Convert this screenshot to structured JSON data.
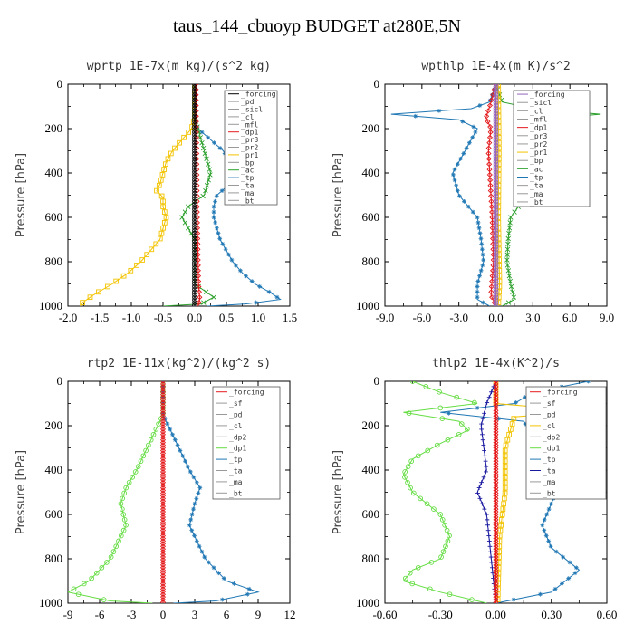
{
  "title": "taus_144_cbuoyp  BUDGET at280E,5N",
  "chart_data": [
    {
      "type": "line",
      "title": "wprtp  1E-7x(m kg)/(s^2 kg)",
      "ylabel": "Pressure [hPa]",
      "xlim": [
        -2.0,
        1.5
      ],
      "ylim": [
        1000,
        0
      ],
      "xticks": [
        -2.0,
        -1.5,
        -1.0,
        -0.5,
        0.0,
        0.5,
        1.0,
        1.5
      ],
      "xtick_labels": [
        "-2.0",
        "-1.5",
        "-1.0",
        "-0.5",
        "0.0",
        "0.5",
        "1.0",
        "1.5"
      ],
      "yticks": [
        0,
        200,
        400,
        600,
        800,
        1000
      ],
      "legend": [
        "_forcing",
        "_pd",
        "_sicl",
        "_cl",
        "_mfl",
        "_dp1",
        "_pr3",
        "_pr2",
        "_pr1",
        "_bp",
        "_ac",
        "_tp",
        "_ta",
        "_ma",
        "_bt"
      ],
      "series": [
        {
          "name": "_pr1",
          "color": "#f2c300",
          "marker": "square",
          "points": [
            [
              0,
              0
            ],
            [
              0,
              150
            ],
            [
              -0.05,
              200
            ],
            [
              -0.2,
              250
            ],
            [
              -0.35,
              300
            ],
            [
              -0.45,
              350
            ],
            [
              -0.5,
              400
            ],
            [
              -0.55,
              450
            ],
            [
              -0.6,
              480
            ],
            [
              -0.5,
              510
            ],
            [
              -0.5,
              550
            ],
            [
              -0.45,
              600
            ],
            [
              -0.5,
              650
            ],
            [
              -0.55,
              700
            ],
            [
              -0.7,
              750
            ],
            [
              -0.85,
              800
            ],
            [
              -1.05,
              850
            ],
            [
              -1.3,
              900
            ],
            [
              -1.6,
              950
            ],
            [
              -1.8,
              990
            ],
            [
              -1.8,
              1000
            ]
          ]
        },
        {
          "name": "_tp",
          "color": "#1f77b4",
          "marker": "star",
          "points": [
            [
              0,
              0
            ],
            [
              0,
              150
            ],
            [
              0.05,
              200
            ],
            [
              0.25,
              250
            ],
            [
              0.45,
              300
            ],
            [
              0.55,
              350
            ],
            [
              0.6,
              400
            ],
            [
              0.55,
              450
            ],
            [
              0.35,
              500
            ],
            [
              0.3,
              550
            ],
            [
              0.3,
              600
            ],
            [
              0.35,
              650
            ],
            [
              0.4,
              700
            ],
            [
              0.5,
              750
            ],
            [
              0.6,
              800
            ],
            [
              0.75,
              850
            ],
            [
              0.95,
              900
            ],
            [
              1.2,
              940
            ],
            [
              1.35,
              970
            ],
            [
              0.8,
              990
            ],
            [
              0.2,
              1000
            ]
          ]
        },
        {
          "name": "_ac",
          "color": "#2ca02c",
          "marker": "cross",
          "points": [
            [
              0,
              0
            ],
            [
              0,
              150
            ],
            [
              0.05,
              200
            ],
            [
              0.15,
              300
            ],
            [
              0.25,
              400
            ],
            [
              0.15,
              500
            ],
            [
              -0.1,
              550
            ],
            [
              -0.2,
              600
            ],
            [
              -0.1,
              650
            ],
            [
              0,
              700
            ],
            [
              0,
              900
            ],
            [
              0.3,
              960
            ],
            [
              0.1,
              990
            ],
            [
              -0.5,
              1000
            ]
          ]
        },
        {
          "name": "_dp1",
          "color": "#e41a1c",
          "marker": "diamond",
          "points": [
            [
              0.02,
              0
            ],
            [
              0.03,
              300
            ],
            [
              0.04,
              600
            ],
            [
              0.06,
              900
            ],
            [
              0.08,
              970
            ],
            [
              0.05,
              1000
            ]
          ]
        },
        {
          "name": "_forcing",
          "color": "#000000",
          "marker": "circle",
          "points": [
            [
              0,
              0
            ],
            [
              0,
              1000
            ]
          ]
        }
      ]
    },
    {
      "type": "line",
      "title": "wpthlp  1E-4x(m K)/s^2",
      "ylabel": "Pressure [hPa]",
      "xlim": [
        -9.0,
        9.0
      ],
      "ylim": [
        1000,
        0
      ],
      "xticks": [
        -9.0,
        -6.0,
        -3.0,
        0.0,
        3.0,
        6.0,
        9.0
      ],
      "xtick_labels": [
        "-9.0",
        "-6.0",
        "-3.0",
        "0.0",
        "3.0",
        "6.0",
        "9.0"
      ],
      "yticks": [
        0,
        200,
        400,
        600,
        800,
        1000
      ],
      "legend": [
        "_forcing",
        "_sicl",
        "_cl",
        "_mfl",
        "_dp1",
        "_pr3",
        "_pr2",
        "_pr1",
        "_bp",
        "_ac",
        "_tp",
        "_ta",
        "_ma",
        "_bt"
      ],
      "series": [
        {
          "name": "_tp",
          "color": "#1f77b4",
          "marker": "star",
          "points": [
            [
              0,
              0
            ],
            [
              -0.5,
              80
            ],
            [
              -2,
              110
            ],
            [
              -8.5,
              135
            ],
            [
              -3,
              160
            ],
            [
              -1.5,
              200
            ],
            [
              -2.5,
              300
            ],
            [
              -3.5,
              400
            ],
            [
              -3,
              500
            ],
            [
              -1.5,
              600
            ],
            [
              -1.2,
              700
            ],
            [
              -1,
              800
            ],
            [
              -1.5,
              900
            ],
            [
              -1.5,
              970
            ],
            [
              -0.5,
              1000
            ]
          ]
        },
        {
          "name": "_ac",
          "color": "#2ca02c",
          "marker": "cross",
          "points": [
            [
              0,
              0
            ],
            [
              0.5,
              80
            ],
            [
              3,
              110
            ],
            [
              8.5,
              135
            ],
            [
              3,
              160
            ],
            [
              1.5,
              200
            ],
            [
              2.5,
              300
            ],
            [
              3.5,
              400
            ],
            [
              2.5,
              500
            ],
            [
              1.2,
              600
            ],
            [
              1,
              700
            ],
            [
              0.9,
              800
            ],
            [
              1.2,
              900
            ],
            [
              1.5,
              970
            ],
            [
              0.5,
              1000
            ]
          ]
        },
        {
          "name": "_dp1",
          "color": "#e41a1c",
          "marker": "diamond",
          "points": [
            [
              0,
              0
            ],
            [
              -0.5,
              100
            ],
            [
              -0.8,
              150
            ],
            [
              -0.4,
              200
            ],
            [
              -0.6,
              300
            ],
            [
              -0.5,
              400
            ],
            [
              -0.3,
              600
            ],
            [
              -0.2,
              800
            ],
            [
              -0.4,
              950
            ],
            [
              0,
              1000
            ]
          ]
        },
        {
          "name": "_pr1",
          "color": "#f2c300",
          "marker": "square",
          "points": [
            [
              0.2,
              0
            ],
            [
              0.25,
              300
            ],
            [
              0.2,
              600
            ],
            [
              0.3,
              900
            ],
            [
              0.2,
              1000
            ]
          ]
        },
        {
          "name": "_forcing",
          "color": "#9467bd",
          "marker": "circle",
          "points": [
            [
              0,
              0
            ],
            [
              0,
              1000
            ]
          ]
        }
      ]
    },
    {
      "type": "line",
      "title": "rtp2  1E-11x(kg^2)/(kg^2 s)",
      "ylabel": "Pressure [hPa]",
      "xlim": [
        -9,
        12
      ],
      "ylim": [
        1000,
        0
      ],
      "xticks": [
        -9,
        -6,
        -3,
        0,
        3,
        6,
        9,
        12
      ],
      "xtick_labels": [
        "-9",
        "-6",
        "-3",
        "0",
        "3",
        "6",
        "9",
        "12"
      ],
      "yticks": [
        0,
        200,
        400,
        600,
        800,
        1000
      ],
      "legend": [
        "_forcing",
        "_sf",
        "_pd",
        "_cl",
        "_dp2",
        "_dp1",
        "_tp",
        "_ta",
        "_ma",
        "_bt"
      ],
      "series": [
        {
          "name": "_dp1",
          "color": "#66dd44",
          "marker": "circle-open",
          "points": [
            [
              0,
              0
            ],
            [
              0,
              150
            ],
            [
              -0.5,
              200
            ],
            [
              -1.5,
              300
            ],
            [
              -2.5,
              400
            ],
            [
              -3.5,
              480
            ],
            [
              -4,
              550
            ],
            [
              -3.5,
              650
            ],
            [
              -4,
              700
            ],
            [
              -5,
              800
            ],
            [
              -7,
              900
            ],
            [
              -9,
              950
            ],
            [
              -5,
              990
            ],
            [
              -1,
              1000
            ]
          ]
        },
        {
          "name": "_tp",
          "color": "#1f77b4",
          "marker": "star",
          "points": [
            [
              0,
              0
            ],
            [
              0,
              150
            ],
            [
              0.5,
              200
            ],
            [
              1.5,
              300
            ],
            [
              2.5,
              400
            ],
            [
              3.5,
              480
            ],
            [
              3,
              550
            ],
            [
              2.5,
              650
            ],
            [
              3,
              700
            ],
            [
              4,
              800
            ],
            [
              6,
              900
            ],
            [
              9,
              950
            ],
            [
              5,
              990
            ],
            [
              1,
              1000
            ]
          ]
        },
        {
          "name": "_forcing",
          "color": "#e41a1c",
          "marker": "diamond",
          "points": [
            [
              0,
              0
            ],
            [
              0,
              1000
            ]
          ]
        }
      ]
    },
    {
      "type": "line",
      "title": "thlp2  1E-4x(K^2)/s",
      "ylabel": "Pressure [hPa]",
      "xlim": [
        -0.6,
        0.6
      ],
      "ylim": [
        1000,
        0
      ],
      "xticks": [
        -0.6,
        -0.3,
        0.0,
        0.3,
        0.6
      ],
      "xtick_labels": [
        "-0.60",
        "-0.30",
        "0.00",
        "0.30",
        "0.60"
      ],
      "yticks": [
        0,
        200,
        400,
        600,
        800,
        1000
      ],
      "legend": [
        "_forcing",
        "_sf",
        "_pd",
        "_cl",
        "_dp2",
        "_dp1",
        "_tp",
        "_ta",
        "_ma",
        "_bt"
      ],
      "series": [
        {
          "name": "_dp1",
          "color": "#66dd44",
          "marker": "circle-open",
          "points": [
            [
              -0.45,
              0
            ],
            [
              -0.3,
              50
            ],
            [
              -0.1,
              100
            ],
            [
              -0.5,
              140
            ],
            [
              -0.2,
              180
            ],
            [
              -0.15,
              220
            ],
            [
              -0.3,
              280
            ],
            [
              -0.45,
              350
            ],
            [
              -0.5,
              420
            ],
            [
              -0.45,
              500
            ],
            [
              -0.3,
              600
            ],
            [
              -0.25,
              700
            ],
            [
              -0.3,
              800
            ],
            [
              -0.45,
              850
            ],
            [
              -0.5,
              900
            ],
            [
              -0.3,
              950
            ],
            [
              -0.05,
              1000
            ]
          ]
        },
        {
          "name": "_tp",
          "color": "#1f77b4",
          "marker": "star",
          "points": [
            [
              0.5,
              0
            ],
            [
              0.2,
              50
            ],
            [
              0.1,
              100
            ],
            [
              -0.3,
              140
            ],
            [
              0.15,
              180
            ],
            [
              0.2,
              250
            ],
            [
              0.3,
              350
            ],
            [
              0.35,
              450
            ],
            [
              0.3,
              550
            ],
            [
              0.25,
              650
            ],
            [
              0.3,
              750
            ],
            [
              0.45,
              850
            ],
            [
              0.3,
              950
            ],
            [
              0,
              1000
            ]
          ]
        },
        {
          "name": "_cl",
          "color": "#f2c300",
          "marker": "square",
          "points": [
            [
              0,
              0
            ],
            [
              0,
              100
            ],
            [
              0.5,
              135
            ],
            [
              0.1,
              160
            ],
            [
              0.05,
              300
            ],
            [
              0.05,
              500
            ],
            [
              0.02,
              700
            ],
            [
              0.01,
              1000
            ]
          ]
        },
        {
          "name": "_ta",
          "color": "#1a1aa0",
          "marker": "plus",
          "points": [
            [
              0,
              0
            ],
            [
              -0.05,
              100
            ],
            [
              -0.08,
              200
            ],
            [
              -0.05,
              400
            ],
            [
              -0.1,
              500
            ],
            [
              -0.05,
              600
            ],
            [
              0,
              1000
            ]
          ]
        },
        {
          "name": "_forcing",
          "color": "#e41a1c",
          "marker": "diamond",
          "points": [
            [
              0,
              0
            ],
            [
              0,
              1000
            ]
          ]
        }
      ]
    }
  ]
}
